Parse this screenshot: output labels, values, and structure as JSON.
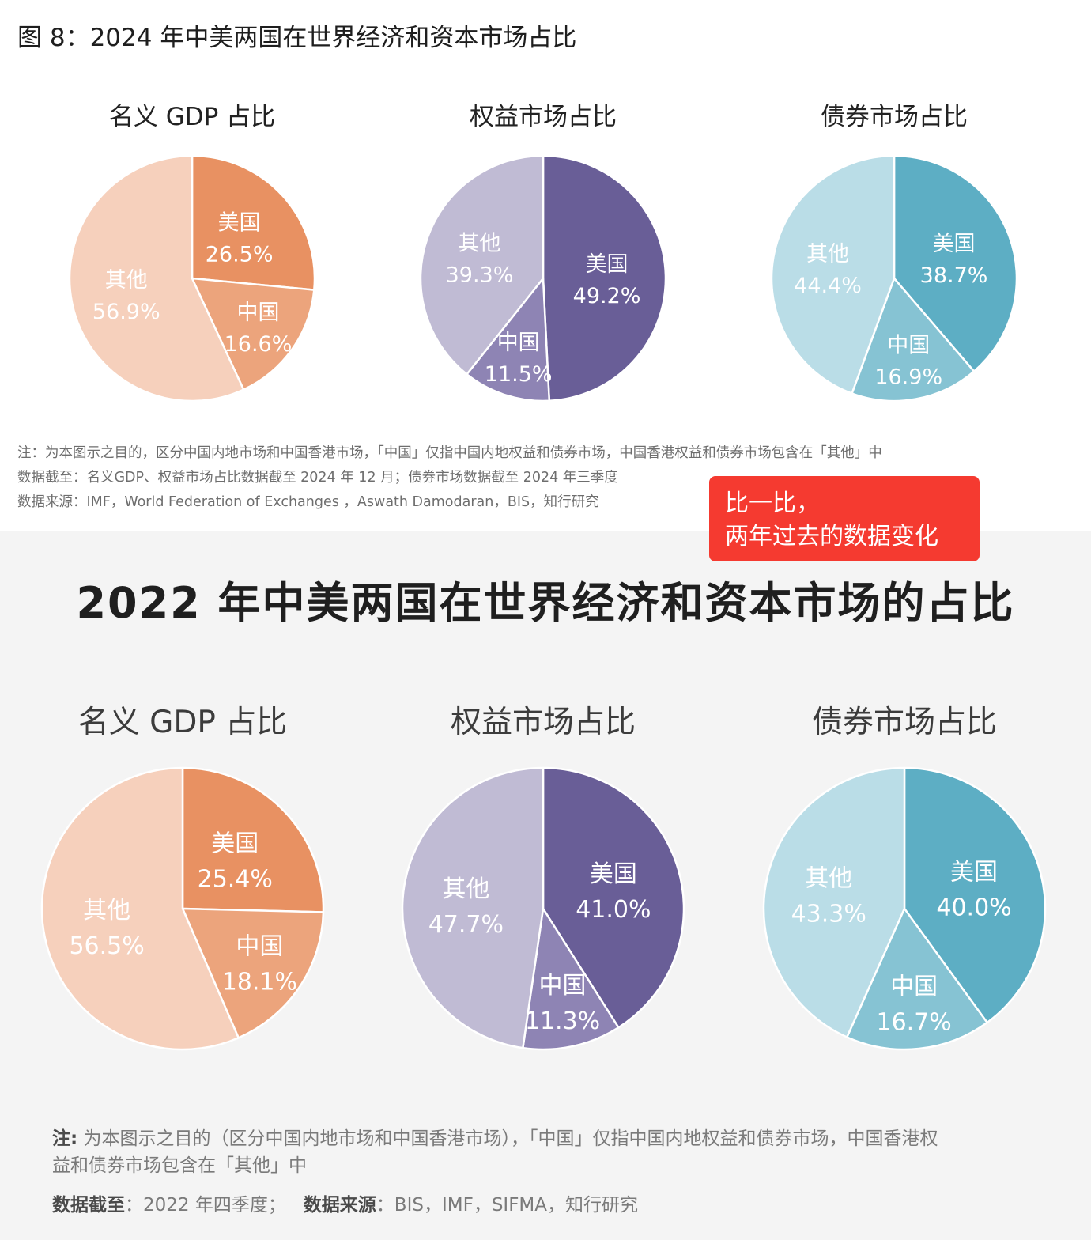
{
  "figure_title": "图 8：2024 年中美两国在世界经济和资本市场占比",
  "top_notes": [
    "注：为本图示之目的，区分中国内地市场和中国香港市场，「中国」仅指中国内地权益和债券市场，中国香港权益和债券市场包含在「其他」中",
    "数据截至：名义GDP、权益市场占比数据截至 2024 年 12 月；债券市场数据截至 2024 年三季度",
    "数据来源：IMF，World Federation of Exchanges ，Aswath Damodaran，BIS，知行研究"
  ],
  "callout": {
    "line1": "比一比，",
    "line2": "两年过去的数据变化"
  },
  "bottom_title": "2022 年中美两国在世界经济和资本市场的占比",
  "bottom_notes": {
    "note_label": "注:",
    "note_line1": "为本图示之目的（区分中国内地市场和中国香港市场），「中国」仅指中国内地权益和债券市场，中国香港权",
    "note_line2": "益和债券市场包含在「其他」中",
    "cutoff_label": "数据截至",
    "cutoff_value": "：2022 年四季度；",
    "source_label": "数据来源",
    "source_value": "：BIS，IMF，SIFMA，知行研究"
  },
  "chart_data": [
    {
      "type": "pie",
      "title": "名义 GDP 占比",
      "year": "2024",
      "slices": [
        {
          "label": "美国",
          "value": 26.5,
          "display": "26.5%",
          "color": "#e89162"
        },
        {
          "label": "中国",
          "value": 16.6,
          "display": "16.6%",
          "color": "#eca47c"
        },
        {
          "label": "其他",
          "value": 56.9,
          "display": "56.9%",
          "color": "#f6d0bc"
        }
      ]
    },
    {
      "type": "pie",
      "title": "权益市场占比",
      "year": "2024",
      "slices": [
        {
          "label": "美国",
          "value": 49.2,
          "display": "49.2%",
          "color": "#695e97"
        },
        {
          "label": "中国",
          "value": 11.5,
          "display": "11.5%",
          "color": "#8e84b4"
        },
        {
          "label": "其他",
          "value": 39.3,
          "display": "39.3%",
          "color": "#c0bbd4"
        }
      ]
    },
    {
      "type": "pie",
      "title": "债券市场占比",
      "year": "2024",
      "slices": [
        {
          "label": "美国",
          "value": 38.7,
          "display": "38.7%",
          "color": "#5daec4"
        },
        {
          "label": "中国",
          "value": 16.9,
          "display": "16.9%",
          "color": "#86c3d3"
        },
        {
          "label": "其他",
          "value": 44.4,
          "display": "44.4%",
          "color": "#badde7"
        }
      ]
    },
    {
      "type": "pie",
      "title": "名义 GDP 占比",
      "year": "2022",
      "slices": [
        {
          "label": "美国",
          "value": 25.4,
          "display": "25.4%",
          "color": "#e89162"
        },
        {
          "label": "中国",
          "value": 18.1,
          "display": "18.1%",
          "color": "#eca47c"
        },
        {
          "label": "其他",
          "value": 56.5,
          "display": "56.5%",
          "color": "#f6d0bc"
        }
      ]
    },
    {
      "type": "pie",
      "title": "权益市场占比",
      "year": "2022",
      "slices": [
        {
          "label": "美国",
          "value": 41.0,
          "display": "41.0%",
          "color": "#695e97"
        },
        {
          "label": "中国",
          "value": 11.3,
          "display": "11.3%",
          "color": "#8e84b4"
        },
        {
          "label": "其他",
          "value": 47.7,
          "display": "47.7%",
          "color": "#c0bbd4"
        }
      ]
    },
    {
      "type": "pie",
      "title": "债券市场占比",
      "year": "2022",
      "slices": [
        {
          "label": "美国",
          "value": 40.0,
          "display": "40.0%",
          "color": "#5daec4"
        },
        {
          "label": "中国",
          "value": 16.7,
          "display": "16.7%",
          "color": "#86c3d3"
        },
        {
          "label": "其他",
          "value": 43.3,
          "display": "43.3%",
          "color": "#badde7"
        }
      ]
    }
  ]
}
